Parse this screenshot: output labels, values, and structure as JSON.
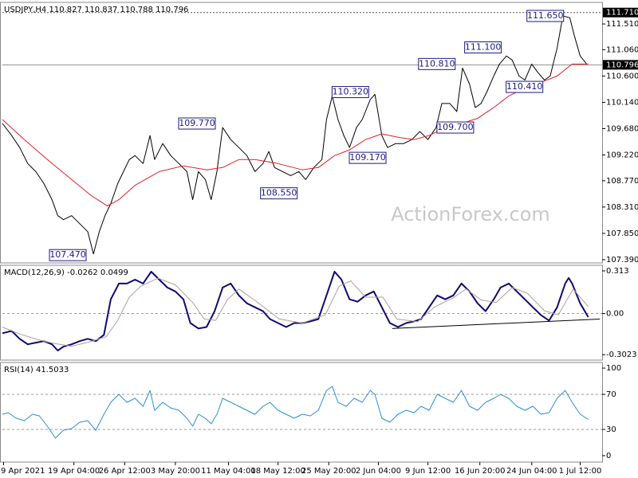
{
  "chart_data": [
    {
      "type": "line",
      "title": "USDJPY,H4  110.827 110.837 110.788 110.796",
      "watermark": "ActionForex.com",
      "xlim": [
        0,
        520
      ],
      "ylim": [
        107.334,
        111.887
      ],
      "yticks": [
        {
          "value": 111.51,
          "label": "111.510"
        },
        {
          "value": 111.06,
          "label": "111.060"
        },
        {
          "value": 110.6,
          "label": "110.600"
        },
        {
          "value": 110.14,
          "label": "110.140"
        },
        {
          "value": 109.68,
          "label": "109.680"
        },
        {
          "value": 109.22,
          "label": "109.220"
        },
        {
          "value": 108.77,
          "label": "108.770"
        },
        {
          "value": 108.31,
          "label": "108.310"
        },
        {
          "value": 107.85,
          "label": "107.850"
        },
        {
          "value": 107.39,
          "label": "107.390"
        }
      ],
      "hlines": [
        {
          "value": 111.71,
          "label": "111.710"
        },
        {
          "value": 110.796,
          "label": "110.796"
        }
      ],
      "series": [
        {
          "color": "#000000",
          "x": [
            0,
            8,
            15,
            22,
            29,
            36,
            43,
            48,
            53,
            60,
            67,
            74,
            79,
            84,
            89,
            94,
            100,
            105,
            110,
            115,
            122,
            128,
            132,
            139,
            146,
            153,
            160,
            165,
            170,
            176,
            181,
            186,
            191,
            198,
            205,
            212,
            219,
            226,
            231,
            236,
            243,
            250,
            257,
            263,
            270,
            277,
            281,
            286,
            291,
            296,
            301,
            307,
            312,
            319,
            323,
            329,
            334,
            341,
            348,
            355,
            362,
            369,
            376,
            381,
            388,
            394,
            399,
            405,
            410,
            415,
            420,
            426,
            431,
            437,
            442,
            448,
            453,
            459,
            464,
            470,
            475,
            481,
            486,
            492,
            496,
            501,
            507
          ],
          "values": [
            109.77,
            109.56,
            109.35,
            109.07,
            108.93,
            108.72,
            108.44,
            108.16,
            108.09,
            108.16,
            108.02,
            107.88,
            107.49,
            107.88,
            108.16,
            108.37,
            108.72,
            108.93,
            109.14,
            109.21,
            109.07,
            109.56,
            109.14,
            109.42,
            109.21,
            109.07,
            108.93,
            108.44,
            108.93,
            108.79,
            108.44,
            108.93,
            109.7,
            109.49,
            109.35,
            109.21,
            108.93,
            109.07,
            109.28,
            109.0,
            108.93,
            108.86,
            108.93,
            108.79,
            109.0,
            109.14,
            109.84,
            110.25,
            109.84,
            109.56,
            109.35,
            109.7,
            109.84,
            110.19,
            110.28,
            109.56,
            109.35,
            109.42,
            109.42,
            109.49,
            109.63,
            109.49,
            109.7,
            110.12,
            110.12,
            109.98,
            110.74,
            110.46,
            110.05,
            110.12,
            110.32,
            110.6,
            110.81,
            110.95,
            110.88,
            110.6,
            110.53,
            110.81,
            110.67,
            110.53,
            110.6,
            111.09,
            111.65,
            111.62,
            111.3,
            110.95,
            110.8
          ]
        },
        {
          "color": "#e0202a",
          "x": [
            0,
            19,
            39,
            60,
            77,
            91,
            101,
            115,
            136,
            157,
            177,
            191,
            205,
            219,
            239,
            260,
            274,
            288,
            301,
            315,
            329,
            343,
            357,
            370,
            384,
            398,
            412,
            426,
            439,
            453,
            467,
            481,
            494,
            508
          ],
          "values": [
            109.84,
            109.49,
            109.14,
            108.79,
            108.51,
            108.33,
            108.44,
            108.69,
            108.93,
            109.03,
            108.96,
            109.0,
            109.14,
            109.14,
            109.07,
            108.96,
            109.0,
            109.21,
            109.31,
            109.49,
            109.59,
            109.53,
            109.49,
            109.56,
            109.7,
            109.77,
            109.86,
            110.05,
            110.25,
            110.39,
            110.49,
            110.6,
            110.81,
            110.81
          ]
        }
      ],
      "annotations": [
        {
          "x": 488,
          "value": 111.65,
          "label": "111.650"
        },
        {
          "x": 434,
          "value": 111.1,
          "label": "111.100"
        },
        {
          "x": 394,
          "value": 110.81,
          "label": "110.810"
        },
        {
          "x": 470,
          "value": 110.41,
          "label": "110.410"
        },
        {
          "x": 319,
          "value": 110.32,
          "label": "110.320"
        },
        {
          "x": 410,
          "value": 109.7,
          "label": "109.700"
        },
        {
          "x": 186,
          "value": 109.77,
          "label": "109.770"
        },
        {
          "x": 334,
          "value": 109.17,
          "label": "109.170"
        },
        {
          "x": 257,
          "value": 108.55,
          "label": "108.550"
        },
        {
          "x": 74,
          "value": 107.47,
          "label": "107.470"
        }
      ]
    },
    {
      "type": "line",
      "title": "MACD(12,26,9) -0.0262 0.0499",
      "xlim": [
        0,
        520
      ],
      "ylim": [
        -0.342,
        0.354
      ],
      "yticks": [
        0.313,
        {
          "value": 0,
          "label": "0.00"
        },
        -0.3023
      ],
      "levels": [
        0
      ],
      "trendline": {
        "x": [
          338,
          518
        ],
        "values": [
          -0.11,
          -0.041
        ]
      },
      "series": [
        {
          "color": "#0c0c70",
          "x": [
            0,
            8,
            15,
            22,
            29,
            36,
            43,
            48,
            53,
            60,
            67,
            74,
            81,
            88,
            94,
            101,
            108,
            115,
            122,
            129,
            136,
            143,
            150,
            157,
            163,
            170,
            177,
            184,
            191,
            198,
            205,
            212,
            219,
            226,
            232,
            239,
            246,
            253,
            260,
            267,
            274,
            281,
            288,
            294,
            301,
            308,
            315,
            322,
            329,
            336,
            343,
            350,
            357,
            363,
            370,
            377,
            384,
            391,
            398,
            405,
            412,
            419,
            426,
            432,
            439,
            446,
            453,
            460,
            467,
            474,
            481,
            488,
            491,
            494,
            501,
            508
          ],
          "values": [
            -0.145,
            -0.128,
            -0.186,
            -0.226,
            -0.214,
            -0.203,
            -0.226,
            -0.272,
            -0.243,
            -0.226,
            -0.203,
            -0.186,
            -0.203,
            -0.157,
            0.104,
            0.22,
            0.22,
            0.249,
            0.22,
            0.307,
            0.249,
            0.191,
            0.162,
            0.104,
            -0.07,
            -0.11,
            -0.099,
            0.017,
            0.191,
            0.22,
            0.133,
            0.075,
            0.046,
            0.017,
            -0.041,
            -0.07,
            -0.099,
            -0.07,
            -0.07,
            -0.058,
            -0.041,
            0.133,
            0.307,
            0.249,
            0.104,
            0.087,
            0.133,
            0.162,
            0.046,
            -0.07,
            -0.099,
            -0.07,
            -0.058,
            -0.041,
            0.046,
            0.133,
            0.104,
            0.133,
            0.22,
            0.162,
            0.075,
            0.017,
            0.104,
            0.191,
            0.22,
            0.162,
            0.104,
            0.046,
            -0.012,
            -0.052,
            0.046,
            0.22,
            0.261,
            0.22,
            0.075,
            -0.026
          ]
        },
        {
          "color": "#b89a9a",
          "x": [
            0,
            15,
            30,
            45,
            60,
            75,
            90,
            100,
            110,
            120,
            135,
            150,
            165,
            175,
            185,
            195,
            205,
            220,
            240,
            260,
            280,
            292,
            302,
            315,
            330,
            342,
            360,
            375,
            390,
            402,
            415,
            428,
            442,
            455,
            470,
            482,
            495,
            508
          ],
          "values": [
            -0.1,
            -0.15,
            -0.19,
            -0.22,
            -0.24,
            -0.21,
            -0.17,
            -0.05,
            0.12,
            0.2,
            0.26,
            0.21,
            0.08,
            -0.04,
            -0.05,
            0.1,
            0.18,
            0.09,
            -0.04,
            -0.07,
            -0.01,
            0.2,
            0.24,
            0.12,
            0.12,
            -0.04,
            -0.06,
            0.05,
            0.11,
            0.18,
            0.1,
            0.08,
            0.19,
            0.15,
            0.02,
            -0.01,
            0.18,
            0.05
          ]
        }
      ]
    },
    {
      "type": "line",
      "title": "RSI(14) 41.5033",
      "xlim": [
        0,
        520
      ],
      "ylim": [
        -7.3,
        106.4
      ],
      "yticks": [
        100,
        70,
        30,
        0
      ],
      "levels": [
        70,
        30
      ],
      "xticks": [
        {
          "value": 1,
          "label": "9 Apr 2021"
        },
        {
          "value": 62,
          "label": "19 Apr 04:00"
        },
        {
          "value": 106,
          "label": "26 Apr 12:00"
        },
        {
          "value": 150,
          "label": "3 May 20:00"
        },
        {
          "value": 196,
          "label": "11 May 04:00"
        },
        {
          "value": 239,
          "label": "18 May 12:00"
        },
        {
          "value": 283,
          "label": "25 May 20:00"
        },
        {
          "value": 326,
          "label": "2 Jun 04:00"
        },
        {
          "value": 369,
          "label": "9 Jun 12:00"
        },
        {
          "value": 414,
          "label": "16 Jun 20:00"
        },
        {
          "value": 459,
          "label": "24 Jun 04:00"
        },
        {
          "value": 501,
          "label": "1 Jul 12:00"
        }
      ],
      "series": [
        {
          "color": "#2a8fd6",
          "x": [
            0,
            5,
            12,
            19,
            26,
            32,
            39,
            46,
            53,
            60,
            67,
            74,
            81,
            88,
            94,
            101,
            108,
            115,
            122,
            128,
            132,
            139,
            146,
            153,
            160,
            165,
            170,
            176,
            181,
            186,
            191,
            198,
            205,
            212,
            219,
            226,
            232,
            239,
            246,
            253,
            260,
            267,
            274,
            281,
            286,
            291,
            298,
            305,
            312,
            319,
            323,
            329,
            336,
            343,
            350,
            357,
            363,
            370,
            377,
            384,
            391,
            398,
            405,
            412,
            419,
            426,
            432,
            439,
            446,
            453,
            460,
            467,
            474,
            481,
            488,
            494,
            501,
            508
          ],
          "values": [
            47.3,
            49.1,
            42.7,
            40,
            47.3,
            45.5,
            33.6,
            20,
            29.1,
            30.9,
            38.2,
            40,
            29.1,
            47.3,
            60.9,
            70,
            60.9,
            65.5,
            56.4,
            74.5,
            51.8,
            60.9,
            54.5,
            51.8,
            42.7,
            33.6,
            47.3,
            42.7,
            36.4,
            47.3,
            65.5,
            60.9,
            56.4,
            51.8,
            47.3,
            56.4,
            60.9,
            51.8,
            47.3,
            42.7,
            47.3,
            45.5,
            51.8,
            74.5,
            79.1,
            60.9,
            56.4,
            65.5,
            60.9,
            74.5,
            70,
            42.7,
            38.2,
            47.3,
            51.8,
            49.1,
            56.4,
            51.8,
            70,
            65.5,
            60.9,
            74.5,
            56.4,
            51.8,
            60.9,
            65.5,
            70,
            65.5,
            56.4,
            51.8,
            56.4,
            47.3,
            49.1,
            65.5,
            74.5,
            60.9,
            47.3,
            41.5
          ]
        }
      ]
    }
  ]
}
